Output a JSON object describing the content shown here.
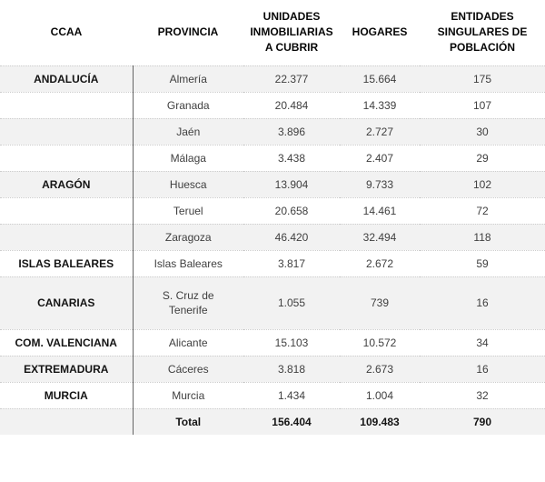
{
  "chart_data": {
    "type": "table",
    "columns": [
      {
        "key": "ccaa",
        "label": [
          "CCAA"
        ]
      },
      {
        "key": "provincia",
        "label": [
          "PROVINCIA"
        ]
      },
      {
        "key": "unidades",
        "label": [
          "UNIDADES",
          "INMOBILIARIAS",
          "A CUBRIR"
        ]
      },
      {
        "key": "hogares",
        "label": [
          "HOGARES"
        ]
      },
      {
        "key": "entidades",
        "label": [
          "ENTIDADES",
          "SINGULARES DE",
          "POBLACIÓN"
        ]
      }
    ],
    "rows": [
      {
        "ccaa": "ANDALUCÍA",
        "provincia": "Almería",
        "unidades": "22.377",
        "hogares": "15.664",
        "entidades": "175",
        "shaded": true,
        "tall": false,
        "total": false
      },
      {
        "ccaa": "",
        "provincia": "Granada",
        "unidades": "20.484",
        "hogares": "14.339",
        "entidades": "107",
        "shaded": false,
        "tall": false,
        "total": false
      },
      {
        "ccaa": "",
        "provincia": "Jaén",
        "unidades": "3.896",
        "hogares": "2.727",
        "entidades": "30",
        "shaded": true,
        "tall": false,
        "total": false
      },
      {
        "ccaa": "",
        "provincia": "Málaga",
        "unidades": "3.438",
        "hogares": "2.407",
        "entidades": "29",
        "shaded": false,
        "tall": false,
        "total": false
      },
      {
        "ccaa": "ARAGÓN",
        "provincia": "Huesca",
        "unidades": "13.904",
        "hogares": "9.733",
        "entidades": "102",
        "shaded": true,
        "tall": false,
        "total": false
      },
      {
        "ccaa": "",
        "provincia": "Teruel",
        "unidades": "20.658",
        "hogares": "14.461",
        "entidades": "72",
        "shaded": false,
        "tall": false,
        "total": false
      },
      {
        "ccaa": "",
        "provincia": "Zaragoza",
        "unidades": "46.420",
        "hogares": "32.494",
        "entidades": "118",
        "shaded": true,
        "tall": false,
        "total": false
      },
      {
        "ccaa": "ISLAS BALEARES",
        "provincia": "Islas Baleares",
        "unidades": "3.817",
        "hogares": "2.672",
        "entidades": "59",
        "shaded": false,
        "tall": false,
        "total": false
      },
      {
        "ccaa": "CANARIAS",
        "provincia": [
          "S. Cruz de",
          "Tenerife"
        ],
        "unidades": "1.055",
        "hogares": "739",
        "entidades": "16",
        "shaded": true,
        "tall": true,
        "total": false
      },
      {
        "ccaa": "COM. VALENCIANA",
        "provincia": "Alicante",
        "unidades": "15.103",
        "hogares": "10.572",
        "entidades": "34",
        "shaded": false,
        "tall": false,
        "total": false
      },
      {
        "ccaa": "EXTREMADURA",
        "provincia": "Cáceres",
        "unidades": "3.818",
        "hogares": "2.673",
        "entidades": "16",
        "shaded": true,
        "tall": false,
        "total": false
      },
      {
        "ccaa": "MURCIA",
        "provincia": "Murcia",
        "unidades": "1.434",
        "hogares": "1.004",
        "entidades": "32",
        "shaded": false,
        "tall": false,
        "total": false
      },
      {
        "ccaa": "",
        "provincia": "Total",
        "unidades": "156.404",
        "hogares": "109.483",
        "entidades": "790",
        "shaded": true,
        "tall": false,
        "total": true
      }
    ],
    "colors": {
      "shaded_row_background": "#f2f2f2",
      "header_text": "#070707",
      "body_text": "#3f3f3f",
      "emphasis_text": "#141414",
      "column_divider": "#666666",
      "row_separator": "#cdcdcd"
    },
    "layout": {
      "grid": "dotted horizontal separators, single solid vertical divider after first column",
      "alternating_rows": true
    }
  }
}
